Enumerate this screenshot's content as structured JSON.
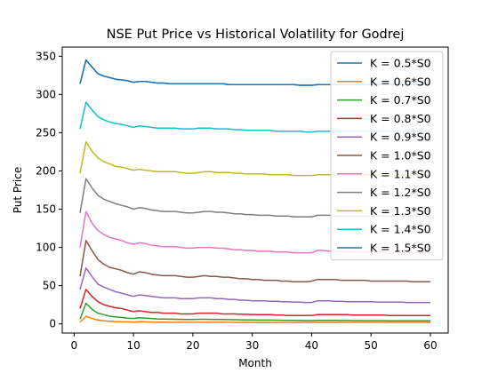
{
  "chart_data": {
    "type": "line",
    "title": "NSE Put Price vs Historical Volatility for Godrej",
    "xlabel": "Month",
    "ylabel": "Put Price",
    "xlim": [
      -2,
      63
    ],
    "ylim": [
      -12,
      362
    ],
    "xticks": [
      0,
      10,
      20,
      30,
      40,
      50,
      60
    ],
    "yticks": [
      0,
      50,
      100,
      150,
      200,
      250,
      300,
      350
    ],
    "grid": false,
    "legend_position": "top-right",
    "x": [
      1,
      2,
      3,
      4,
      5,
      6,
      7,
      8,
      9,
      10,
      11,
      12,
      13,
      14,
      15,
      16,
      17,
      18,
      19,
      20,
      21,
      22,
      23,
      24,
      25,
      26,
      27,
      28,
      29,
      30,
      31,
      32,
      33,
      34,
      35,
      36,
      37,
      38,
      39,
      40,
      41,
      42,
      43,
      44,
      45,
      46,
      47,
      48,
      49,
      50,
      51,
      52,
      53,
      54,
      55,
      56,
      57,
      58,
      59,
      60
    ],
    "series": [
      {
        "name": "K = 0.5*S0",
        "color": "#1f77b4",
        "values": [
          314,
          345,
          336,
          327,
          324,
          322,
          320,
          319,
          318,
          316,
          317,
          317,
          316,
          315,
          315,
          314,
          314,
          314,
          314,
          314,
          314,
          314,
          314,
          314,
          314,
          313,
          313,
          313,
          313,
          313,
          313,
          313,
          313,
          313,
          313,
          313,
          313,
          312,
          312,
          312,
          313,
          313,
          313,
          313,
          313,
          313,
          313,
          313,
          313,
          313,
          313,
          313,
          313,
          313,
          313,
          313,
          313,
          313,
          313,
          313
        ]
      },
      {
        "name": "K = 0.6*S0",
        "color": "#ff7f0e",
        "values": [
          2,
          10,
          7,
          5,
          4,
          3.5,
          3,
          2.8,
          2.6,
          2.4,
          2.8,
          2.6,
          2.4,
          2.3,
          2.2,
          2.1,
          2.1,
          2,
          2,
          2,
          2,
          2,
          2,
          2,
          2,
          2,
          1.9,
          1.9,
          1.9,
          1.9,
          1.8,
          1.8,
          1.8,
          1.8,
          1.8,
          1.8,
          1.8,
          1.8,
          1.8,
          1.8,
          1.9,
          1.9,
          1.9,
          1.9,
          1.9,
          1.9,
          1.9,
          1.9,
          1.9,
          1.9,
          1.9,
          1.9,
          1.9,
          1.9,
          1.9,
          1.9,
          1.9,
          1.9,
          1.9,
          1.9
        ]
      },
      {
        "name": "K = 0.7*S0",
        "color": "#2ca02c",
        "values": [
          6,
          27,
          19,
          14,
          12,
          10,
          9,
          8.5,
          7.5,
          7,
          8,
          7.5,
          7,
          6.5,
          6.3,
          6.1,
          6,
          5.9,
          5.8,
          5.8,
          6,
          6,
          5.9,
          5.8,
          5.7,
          5.5,
          5.4,
          5.3,
          5.2,
          5.1,
          5,
          5,
          4.9,
          4.8,
          4.7,
          4.6,
          4.5,
          4.4,
          4.3,
          4.3,
          4.6,
          4.6,
          4.5,
          4.5,
          4.4,
          4.4,
          4.3,
          4.3,
          4.2,
          4.2,
          4.1,
          4.1,
          4,
          4,
          4,
          4,
          3.9,
          3.9,
          3.9,
          3.9
        ]
      },
      {
        "name": "K = 0.8*S0",
        "color": "#d62728",
        "values": [
          20,
          45,
          36,
          29,
          25,
          23,
          21,
          20,
          18,
          16,
          17,
          16,
          15,
          15,
          14,
          14,
          14,
          13,
          13,
          13,
          14,
          14,
          14,
          14,
          13,
          13,
          13,
          12.5,
          12.5,
          12,
          12,
          12,
          12,
          11.5,
          11.5,
          11,
          11,
          11,
          11,
          11,
          12,
          12,
          12,
          12,
          12,
          12,
          11.5,
          11.5,
          11.5,
          11.5,
          11.5,
          11.5,
          11,
          11,
          11,
          11,
          11,
          11,
          11,
          11
        ]
      },
      {
        "name": "K = 0.9*S0",
        "color": "#9467bd",
        "values": [
          45,
          73,
          62,
          52,
          48,
          45,
          42,
          40,
          38,
          36,
          38,
          37,
          36,
          35,
          34,
          34,
          34,
          33,
          33,
          33,
          34,
          34,
          34,
          33,
          33,
          32,
          32,
          31,
          31,
          30,
          30,
          30,
          29.5,
          29.5,
          29,
          29,
          28.5,
          28.5,
          28,
          28,
          30,
          30,
          30,
          29.5,
          29.5,
          29,
          29,
          29,
          29,
          29,
          28.5,
          28.5,
          28.5,
          28.5,
          28.5,
          28,
          28,
          28,
          28,
          28
        ]
      },
      {
        "name": "K = 1.0*S0",
        "color": "#8c564b",
        "values": [
          62,
          109,
          96,
          84,
          78,
          74,
          72,
          70,
          67,
          65,
          68,
          67,
          65,
          64,
          63,
          63,
          63,
          62,
          61,
          61,
          62,
          63,
          62,
          62,
          61,
          61,
          60,
          59,
          59,
          58,
          58,
          57,
          57,
          57,
          56,
          56,
          55,
          55,
          55,
          56,
          58,
          58,
          58,
          58,
          57,
          57,
          57,
          57,
          57,
          56,
          56,
          56,
          56,
          56,
          56,
          56,
          55,
          55,
          55,
          55
        ]
      },
      {
        "name": "K = 1.1*S0",
        "color": "#e377c2",
        "values": [
          100,
          147,
          132,
          122,
          117,
          113,
          111,
          109,
          106,
          104,
          106,
          105,
          103,
          102,
          101,
          101,
          101,
          100,
          99,
          99,
          100,
          100,
          100,
          99,
          99,
          98,
          97,
          97,
          96,
          96,
          95,
          95,
          95,
          94,
          94,
          94,
          93,
          93,
          93,
          93,
          96,
          96,
          95,
          95,
          95,
          95,
          94,
          94,
          94,
          94,
          94,
          94,
          93,
          93,
          93,
          93,
          93,
          93,
          93,
          93
        ]
      },
      {
        "name": "K = 1.2*S0",
        "color": "#7f7f7f",
        "values": [
          145,
          190,
          178,
          168,
          163,
          160,
          157,
          155,
          153,
          150,
          152,
          151,
          149,
          148,
          147,
          147,
          147,
          146,
          145,
          145,
          146,
          147,
          147,
          146,
          146,
          145,
          144,
          144,
          143,
          143,
          142,
          142,
          142,
          141,
          141,
          141,
          140,
          140,
          140,
          140,
          142,
          142,
          142,
          141,
          141,
          141,
          141,
          141,
          141,
          141,
          141,
          141,
          141,
          141,
          141,
          141,
          141,
          141,
          141,
          141
        ]
      },
      {
        "name": "K = 1.3*S0",
        "color": "#bcbd22",
        "values": [
          197,
          238,
          226,
          217,
          212,
          209,
          206,
          205,
          203,
          201,
          202,
          201,
          200,
          199,
          199,
          199,
          199,
          198,
          197,
          197,
          198,
          199,
          199,
          198,
          198,
          198,
          197,
          197,
          196,
          196,
          196,
          196,
          195,
          195,
          195,
          195,
          194,
          194,
          194,
          194,
          195,
          195,
          195,
          195,
          195,
          195,
          195,
          195,
          195,
          195,
          195,
          195,
          195,
          195,
          195,
          195,
          195,
          195,
          195,
          195
        ]
      },
      {
        "name": "K = 1.4*S0",
        "color": "#17becf",
        "values": [
          255,
          290,
          280,
          271,
          267,
          264,
          262,
          261,
          259,
          257,
          259,
          258,
          257,
          256,
          256,
          256,
          256,
          255,
          255,
          255,
          256,
          256,
          256,
          255,
          255,
          255,
          254,
          254,
          253,
          253,
          253,
          253,
          253,
          252,
          252,
          252,
          252,
          252,
          251,
          251,
          252,
          252,
          252,
          252,
          252,
          252,
          252,
          252,
          252,
          252,
          252,
          252,
          252,
          252,
          252,
          252,
          252,
          252,
          252,
          252
        ]
      },
      {
        "name": "K = 1.5*S0",
        "color": "#1f77b4",
        "values": [
          314,
          345,
          336,
          327,
          324,
          322,
          320,
          319,
          318,
          316,
          317,
          317,
          316,
          315,
          315,
          314,
          314,
          314,
          314,
          314,
          314,
          314,
          314,
          314,
          314,
          313,
          313,
          313,
          313,
          313,
          313,
          313,
          313,
          313,
          313,
          313,
          313,
          312,
          312,
          312,
          313,
          313,
          313,
          313,
          313,
          313,
          313,
          313,
          313,
          313,
          313,
          313,
          313,
          313,
          313,
          313,
          313,
          313,
          313,
          313
        ]
      }
    ]
  }
}
